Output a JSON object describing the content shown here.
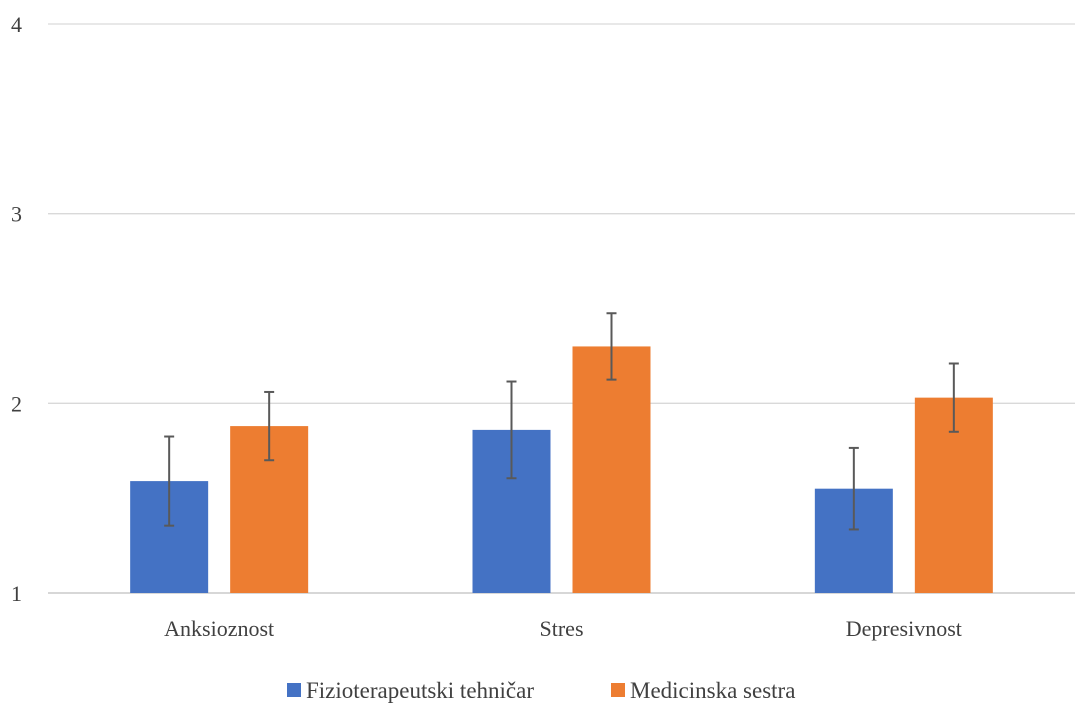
{
  "chart_data": {
    "type": "bar",
    "categories": [
      "Anksioznost",
      "Stres",
      "Depresivnost"
    ],
    "series": [
      {
        "name": "Fizioterapeutski tehničar",
        "color": "#4472c4",
        "values": [
          1.59,
          1.86,
          1.55
        ],
        "error": [
          0.235,
          0.255,
          0.215
        ]
      },
      {
        "name": "Medicinska sestra",
        "color": "#ed7d31",
        "values": [
          1.88,
          2.3,
          2.03
        ],
        "error": [
          0.18,
          0.175,
          0.18
        ]
      }
    ],
    "ylim": [
      1,
      4
    ],
    "yticks": [
      "1",
      "2",
      "3",
      "4"
    ],
    "grid": true,
    "legend_position": "bottom"
  }
}
